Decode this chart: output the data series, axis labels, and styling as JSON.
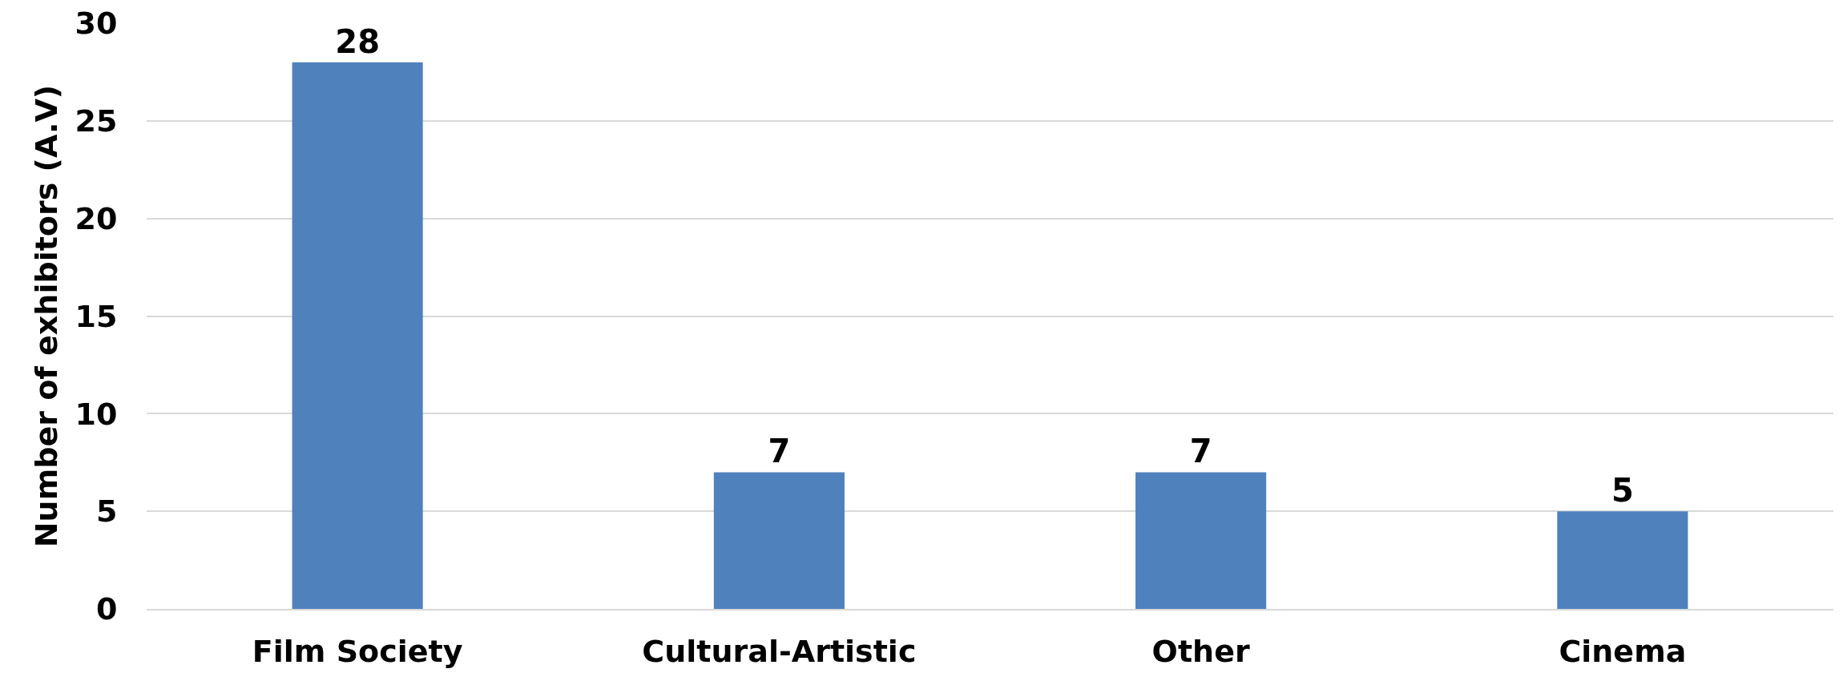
{
  "chart_data": {
    "type": "bar",
    "ylabel": "Number of exhibitors (A.V)",
    "categories": [
      "Film Society",
      "Cultural-Artistic",
      "Other",
      "Cinema"
    ],
    "values": [
      28,
      7,
      7,
      5
    ],
    "color": "#4f81bd",
    "ylim": [
      0,
      30
    ],
    "yticks": [
      0,
      5,
      10,
      15,
      20,
      25,
      30
    ],
    "grid": "y",
    "data_labels": true
  }
}
